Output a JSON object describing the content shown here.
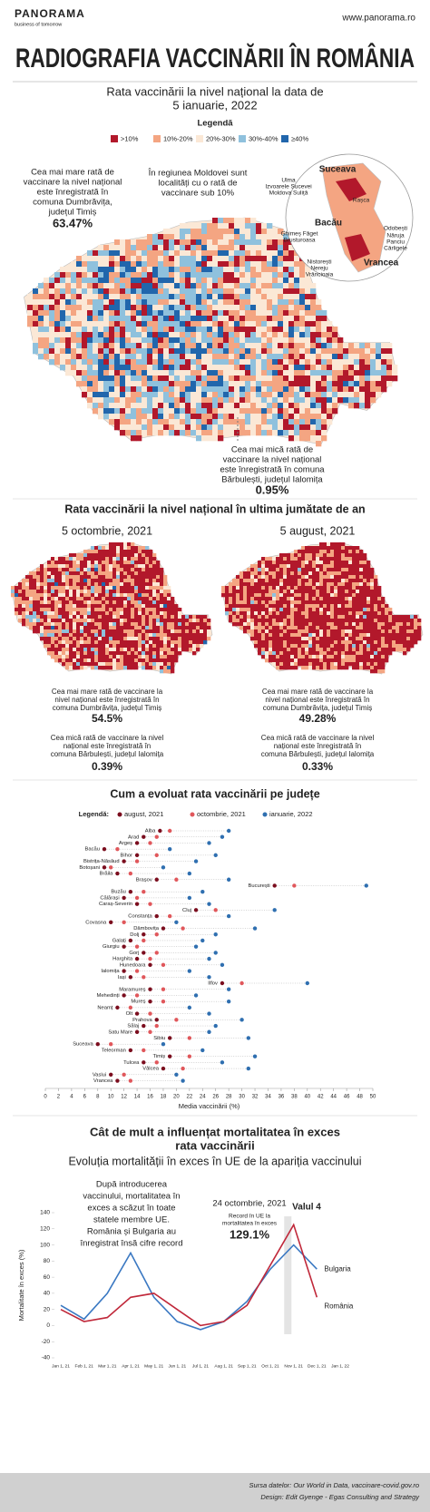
{
  "header": {
    "brand": "PANORAMA",
    "tagline": "business of tomorrow",
    "url": "www.panorama.ro",
    "title": "RADIOGRAFIA VACCINĂRII ÎN ROMÂNIA"
  },
  "maps": {
    "national": {
      "title": [
        "Rata vaccinării la nivel național la data de",
        "5 ianuarie, 2022"
      ],
      "legend_title": "Legendă",
      "legend": [
        {
          "label": ">10%",
          "color": "#b2182b"
        },
        {
          "label": "10%-20%",
          "color": "#f4a582"
        },
        {
          "label": "20%-30%",
          "color": "#fbe8d6"
        },
        {
          "label": "30%-40%",
          "color": "#8fc1dd"
        },
        {
          "label": "≥40%",
          "color": "#2166ac"
        }
      ],
      "max_note": [
        "Cea mai mare rată de",
        "vaccinare la nivel național",
        "este înregistrată în",
        "comuna Dumbrăvița,",
        "județul Timiș"
      ],
      "max_value": "63.47%",
      "moldova_note": [
        "În regiunea Moldovei sunt",
        "localități cu o rată de",
        "vaccinare sub 10%"
      ],
      "min_note": [
        "Cea mai mică rată de",
        "vaccinare la nivel național",
        "este înregistrată în comuna",
        "Bărbulești, județul Ialomița"
      ],
      "min_value": "0.95%",
      "inset_labels": {
        "Suceava": "Suceava",
        "Ulma": "Ulma",
        "Izvoarele": "Izvoarele Sucevei",
        "Moldova": "Moldova Suliță",
        "Rasca": "Rașca",
        "Bacau": "Bacău",
        "Ghimes": "Ghimeș Făget",
        "Brusturoasa": "Brusturoasa",
        "Odobesti": "Odobești",
        "Naruja": "Năruja",
        "Panciu": "Panciu",
        "Carligele": "Cârligele",
        "Nistoresti": "Nistorești",
        "Nereju": "Nereju",
        "Vrancioaia": "Vrâncioaia",
        "Vrancea": "Vrancea"
      }
    },
    "half_year": {
      "title": "Rata vaccinării la nivel național în ultima jumătate de an",
      "panels": [
        {
          "date": "5 octombrie, 2021",
          "max_note": [
            "Cea mai mare rată de vaccinare la",
            "nivel național este înregistrată în",
            "comuna Dumbrăvița, județul Timiș"
          ],
          "max_value": "54.5%",
          "min_note": [
            "Cea mică rată de vaccinare la nivel",
            "național este înregistrată în",
            "comuna Bărbulești, județul Ialomița"
          ],
          "min_value": "0.39%"
        },
        {
          "date": "5 august, 2021",
          "max_note": [
            "Cea mai mare rată de vaccinare la",
            "nivel național este înregistrată în",
            "comuna Dumbrăvița, județul Timiș"
          ],
          "max_value": "49.28%",
          "min_note": [
            "Cea mică rată de vaccinare la nivel",
            "național este înregistrată în",
            "comuna Bărbulești, județul Ialomița"
          ],
          "min_value": "0.33%"
        }
      ]
    }
  },
  "chart_data": [
    {
      "type": "dot",
      "title": "Cum a evoluat rata vaccinării pe județe",
      "legend_title": "Legendă:",
      "x_label": "Media vaccinării (%)",
      "categories": [
        "Alba",
        "Arad",
        "Argeș",
        "Bacău",
        "Bihor",
        "Bistrița-Năsăud",
        "Botoșani",
        "Brăila",
        "Brașov",
        "București",
        "Buzău",
        "Călărași",
        "Caraș-Severin",
        "Cluj",
        "Constanța",
        "Covasna",
        "Dâmbovița",
        "Dolj",
        "Galați",
        "Giurgiu",
        "Gorj",
        "Harghita",
        "Hunedoara",
        "Ialomița",
        "Iași",
        "Ilfov",
        "Maramureș",
        "Mehedinți",
        "Mureș",
        "Neamț",
        "Olt",
        "Prahova",
        "Sălaj",
        "Satu Mare",
        "Sibiu",
        "Suceava",
        "Teleorman",
        "Timiș",
        "Tulcea",
        "Vâlcea",
        "Vaslui",
        "Vrancea"
      ],
      "series": [
        {
          "name": "august, 2021",
          "color": "#7b0d1e",
          "values": [
            17.5,
            15,
            14,
            9,
            14,
            12,
            9,
            11,
            17,
            35,
            13,
            12,
            14,
            23,
            17,
            10,
            18,
            15,
            13,
            12,
            15,
            14,
            16,
            12,
            13,
            27,
            16,
            12,
            16,
            11,
            14,
            17,
            15,
            14,
            19,
            8,
            13,
            19,
            15,
            18,
            10,
            11
          ]
        },
        {
          "name": "octombrie, 2021",
          "color": "#e0575b",
          "values": [
            19,
            17,
            16,
            11,
            17,
            14,
            10,
            13,
            20,
            38,
            15,
            14,
            16,
            26,
            19,
            12,
            21,
            17,
            15,
            14,
            17,
            16,
            18,
            14,
            15,
            30,
            18,
            14,
            18,
            13,
            16,
            20,
            17,
            16,
            22,
            10,
            15,
            22,
            17,
            21,
            12,
            13
          ]
        },
        {
          "name": "ianuarie, 2022",
          "color": "#2f6fb0",
          "values": [
            28,
            27,
            25,
            19,
            26,
            23,
            18,
            22,
            28,
            49,
            24,
            22,
            25,
            35,
            28,
            20,
            32,
            26,
            24,
            23,
            26,
            25,
            27,
            22,
            25,
            40,
            28,
            23,
            28,
            22,
            25,
            30,
            26,
            25,
            31,
            18,
            24,
            32,
            27,
            31,
            20,
            21
          ]
        }
      ],
      "xlim": [
        0,
        50
      ],
      "xticks": [
        0,
        2,
        4,
        6,
        8,
        10,
        12,
        14,
        16,
        18,
        20,
        22,
        24,
        26,
        28,
        30,
        32,
        34,
        36,
        38,
        40,
        42,
        44,
        46,
        48,
        50
      ]
    },
    {
      "type": "line",
      "title": [
        "Cât de mult a influențat mortalitatea în exces",
        "rata vaccinării"
      ],
      "subtitle": "Evoluția mortalității în exces în UE de la apariția vaccinului",
      "y_label": "Mortalitate în exces (%)",
      "categories": [
        "Jan 1, 21",
        "Feb 1, 21",
        "Mar 1, 21",
        "Apr 1, 21",
        "May 1, 21",
        "Jun 1, 21",
        "Jul 1, 21",
        "Aug 1, 21",
        "Sep 1, 21",
        "Oct 1, 21",
        "Nov 1, 21",
        "Dec 1, 21",
        "Jan 1, 22"
      ],
      "series": [
        {
          "name": "Bulgaria",
          "color": "#3a78c2",
          "values": [
            25,
            8,
            40,
            90,
            35,
            5,
            -5,
            5,
            30,
            70,
            100,
            70,
            null
          ]
        },
        {
          "name": "România",
          "color": "#c0283a",
          "values": [
            20,
            5,
            10,
            35,
            40,
            20,
            0,
            5,
            25,
            75,
            125,
            35,
            null
          ]
        }
      ],
      "ylim": [
        -40,
        140
      ],
      "yticks": [
        -40,
        -20,
        0,
        20,
        40,
        60,
        80,
        100,
        120,
        140
      ],
      "annotations": {
        "note": [
          "După introducerea",
          "vaccinului, mortalitatea în",
          "exces a scăzut în toate",
          "statele membre UE.",
          "România și Bulgaria au",
          "înregistrat însă cifre record"
        ],
        "date": "24 octombrie, 2021",
        "wave": "Valul 4",
        "record": [
          "Record în UE la",
          "mortalitatea în exces"
        ],
        "record_value": "129.1%"
      }
    }
  ],
  "footer": {
    "source": "Sursa datelor: Our World in Data, vaccinare-covid.gov.ro",
    "design": "Design: Edit Gyenge - Egas Consulting and Strategy"
  }
}
